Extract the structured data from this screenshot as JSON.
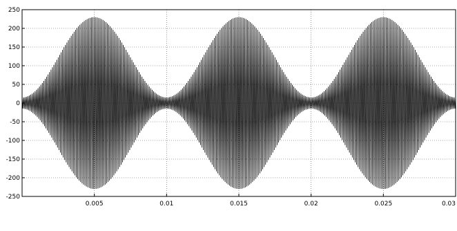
{
  "chart_data": {
    "type": "line",
    "title": "",
    "xlabel": "",
    "ylabel": "",
    "xlim": [
      0,
      0.03
    ],
    "ylim": [
      -250,
      250
    ],
    "grid": true,
    "x_ticks": [
      {
        "value": 0.005,
        "label": "0.005"
      },
      {
        "value": 0.01,
        "label": "0.01"
      },
      {
        "value": 0.015,
        "label": "0.015"
      },
      {
        "value": 0.02,
        "label": "0.02"
      },
      {
        "value": 0.025,
        "label": "0.025"
      },
      {
        "value": 0.03,
        "label": "0.03"
      }
    ],
    "y_ticks": [
      {
        "value": 250,
        "label": "250"
      },
      {
        "value": 200,
        "label": "200"
      },
      {
        "value": 150,
        "label": "150"
      },
      {
        "value": 100,
        "label": "100"
      },
      {
        "value": 50,
        "label": "50"
      },
      {
        "value": 0,
        "label": "0"
      },
      {
        "value": -50,
        "label": "-50"
      },
      {
        "value": -100,
        "label": "-100"
      },
      {
        "value": -150,
        "label": "-150"
      },
      {
        "value": -200,
        "label": "-200"
      },
      {
        "value": -250,
        "label": "-250"
      }
    ],
    "series": [
      {
        "signal": "modulated-carrier",
        "color": "#000000",
        "envelope_peak": 230,
        "envelope_trough": 15,
        "envelope_peaks_at_x": [
          0.005,
          0.015,
          0.025
        ],
        "envelope_troughs_at_x": [
          0,
          0.01,
          0.02,
          0.03
        ],
        "carrier_cycles": 300
      }
    ],
    "colors": {
      "axis": "#000000",
      "grid": "#555555",
      "trace": "#000000",
      "background": "#ffffff"
    }
  }
}
